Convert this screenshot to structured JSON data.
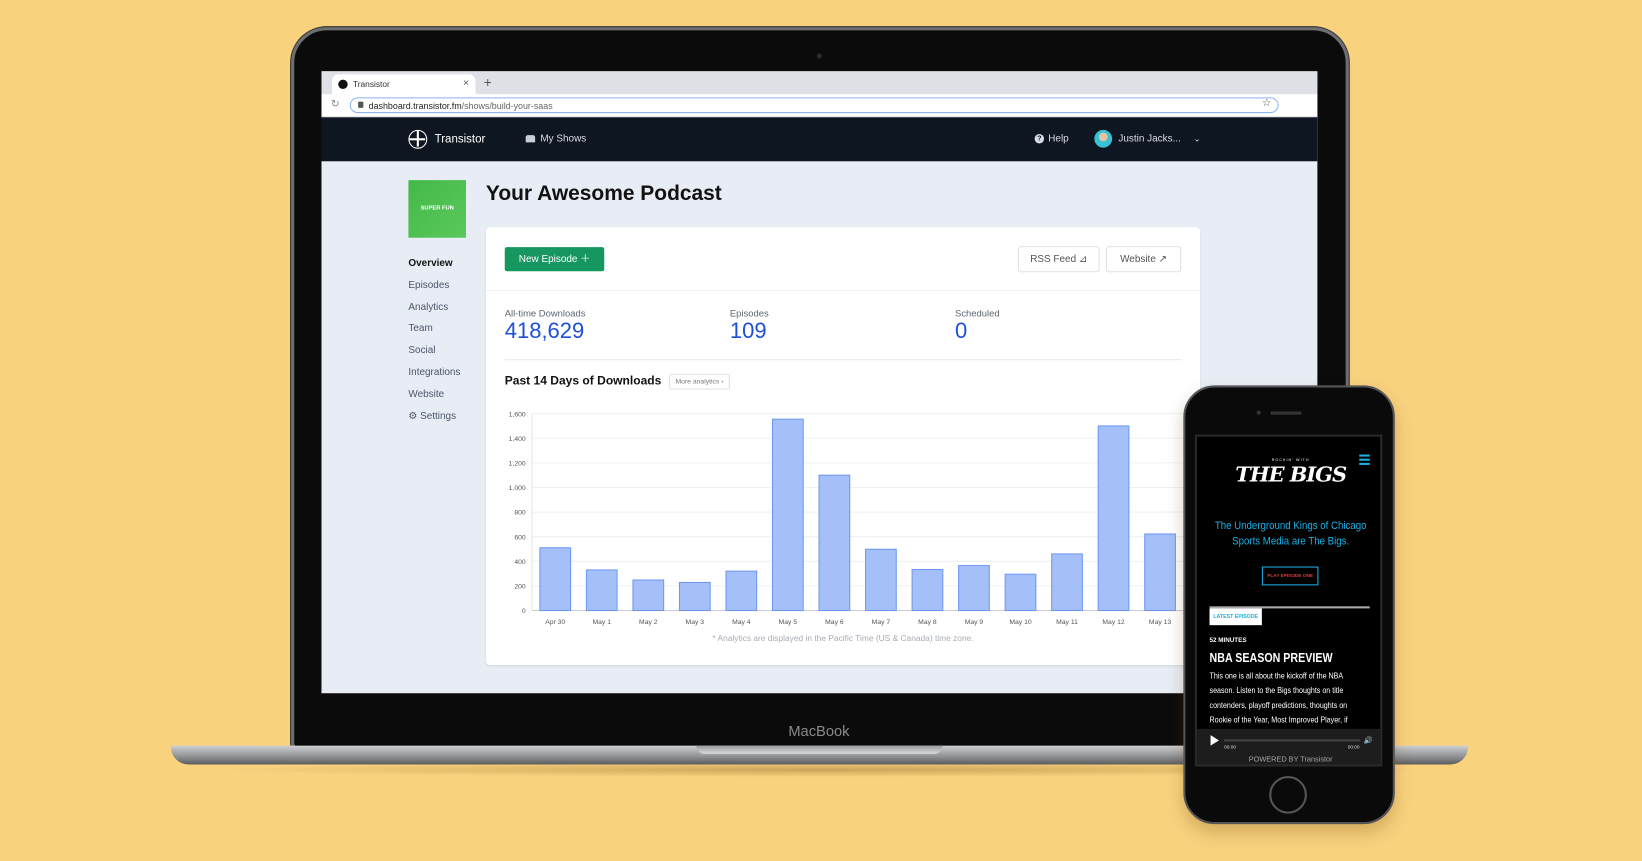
{
  "browser": {
    "tab_title": "Transistor",
    "url_host": "dashboard.transistor.fm",
    "url_path": "/shows/build-your-saas"
  },
  "nav": {
    "brand": "Transistor",
    "my_shows": "My Shows",
    "help": "Help",
    "user": "Justin Jacks..."
  },
  "show": {
    "cover_text": "SUPER FUN",
    "title": "Your Awesome Podcast"
  },
  "sidebar": {
    "items": [
      {
        "label": "Overview",
        "active": true
      },
      {
        "label": "Episodes"
      },
      {
        "label": "Analytics"
      },
      {
        "label": "Team"
      },
      {
        "label": "Social"
      },
      {
        "label": "Integrations"
      },
      {
        "label": "Website"
      },
      {
        "label": "Settings",
        "icon": "gear-icon"
      }
    ]
  },
  "actions": {
    "new_episode": "New Episode",
    "rss_feed": "RSS Feed",
    "website": "Website"
  },
  "stats": [
    {
      "label": "All-time Downloads",
      "value": "418,629"
    },
    {
      "label": "Episodes",
      "value": "109"
    },
    {
      "label": "Scheduled",
      "value": "0"
    }
  ],
  "chart_section": {
    "title": "Past 14 Days of Downloads",
    "more_link": "More analytics",
    "footnote": "* Analytics are displayed in the Pacific Time (US & Canada) time zone."
  },
  "chart_data": {
    "type": "bar",
    "categories": [
      "Apr 30",
      "May 1",
      "May 2",
      "May 3",
      "May 4",
      "May 5",
      "May 6",
      "May 7",
      "May 8",
      "May 9",
      "May 10",
      "May 11",
      "May 12",
      "May 13"
    ],
    "values": [
      510,
      330,
      248,
      228,
      320,
      1555,
      1100,
      498,
      333,
      365,
      295,
      460,
      1500,
      622
    ],
    "ylim": [
      0,
      1600
    ],
    "yticks": [
      "0",
      "200",
      "400",
      "600",
      "800",
      "1,000",
      "1,200",
      "1,400",
      "1,600"
    ],
    "grid": true,
    "bar_color": "#a5bff8",
    "bar_edge": "#6f97f2"
  },
  "device": {
    "laptop_label": "MacBook"
  },
  "phone": {
    "logo_small": "ROCKIN' WITH",
    "logo_big": "THE BIGS",
    "tagline": "The Underground Kings of Chicago Sports Media are The Bigs.",
    "play_button": "PLAY EPISODE ONE",
    "latest_label": "LATEST EPISODE",
    "duration": "52 MINUTES",
    "episode_title": "NBA SEASON PREVIEW",
    "episode_desc": "This one is all about the kickoff of the NBA season. Listen to the Bigs thoughts on title contenders, playoff predictions, thoughts on Rookie of the Year, Most Improved Player, if",
    "time_start": "00:00",
    "time_end": "00:00",
    "powered": "POWERED BY Transistor"
  },
  "colors": {
    "background": "#f9d27e",
    "accent_blue": "#1d4fd8",
    "green": "#15975f",
    "nav": "#0e1621",
    "phone_accent": "#1ab0e6"
  }
}
